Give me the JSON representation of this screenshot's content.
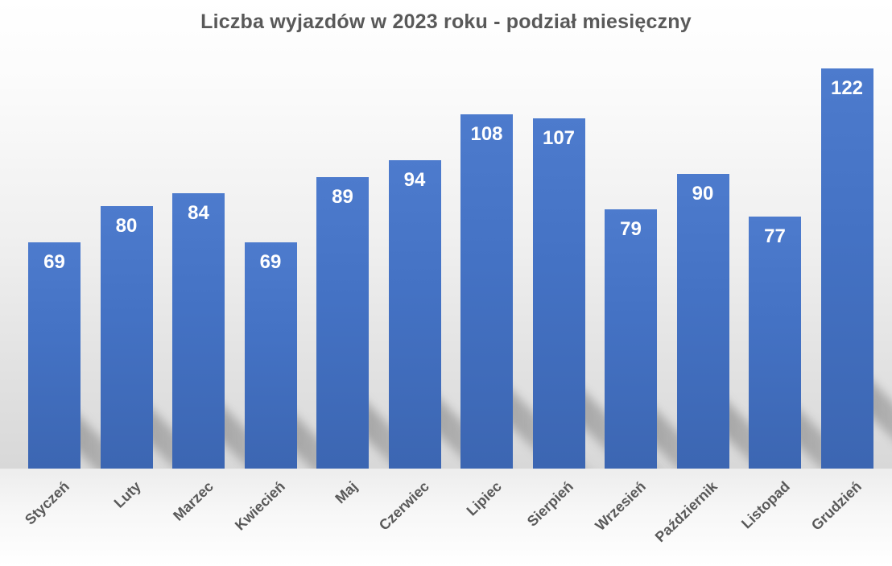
{
  "title": "Liczba wyjazdów w 2023 roku - podział miesięczny",
  "chart_data": {
    "type": "bar",
    "title": "Liczba wyjazdów w 2023 roku - podział miesięczny",
    "categories": [
      "Styczeń",
      "Luty",
      "Marzec",
      "Kwiecień",
      "Maj",
      "Czerwiec",
      "Lipiec",
      "Sierpień",
      "Wrzesień",
      "Październik",
      "Listopad",
      "Grudzień"
    ],
    "values": [
      69,
      80,
      84,
      69,
      89,
      94,
      108,
      107,
      79,
      90,
      77,
      122
    ],
    "xlabel": "",
    "ylabel": "",
    "ylim": [
      0,
      143
    ],
    "grid": false,
    "legend": false,
    "y_axis_visible": false,
    "data_labels_position": "inside-end",
    "data_label_color": "#ffffff",
    "bar_color": "#4472c4",
    "axis_label_color": "#595959",
    "title_color": "#595959",
    "effects": "perspective diagonal shadow lower-right, gradient chart background"
  }
}
